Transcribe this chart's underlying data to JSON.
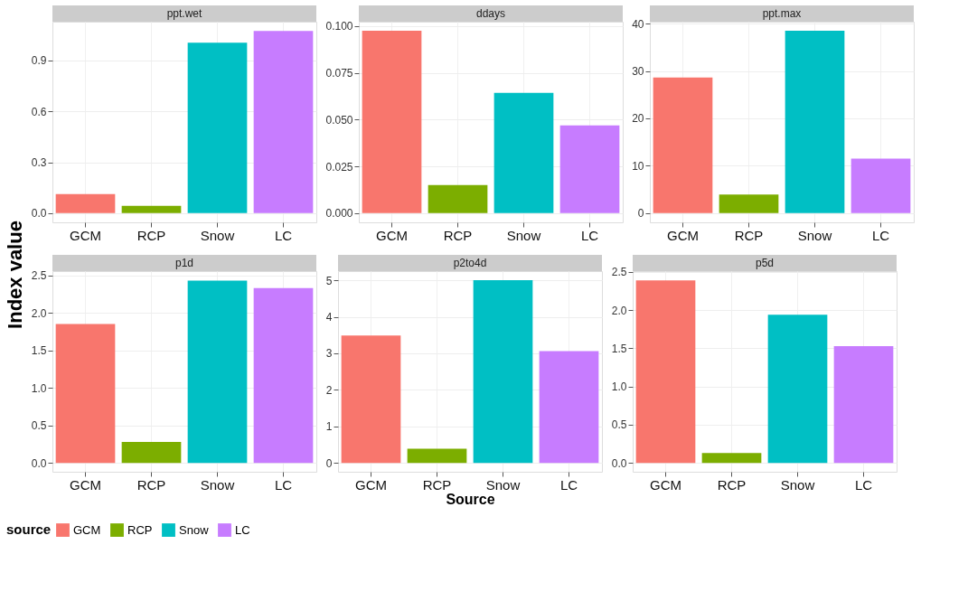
{
  "chart_data": [
    {
      "type": "bar",
      "title": "ppt.wet",
      "ylabel": "Index value",
      "legend_title": "source",
      "legend": "bottom",
      "categories": [
        "GCM",
        "RCP",
        "Snow",
        "LC"
      ],
      "ylim": [
        -0.054,
        1.129
      ],
      "yticks": [
        {
          "value": 0,
          "label": "0.0"
        },
        0.3,
        0.6,
        0.9
      ],
      "grid": true,
      "series": [
        {
          "name": "GCM",
          "color": "#f8766d",
          "values": [
            0.113,
            null,
            null,
            null
          ]
        },
        {
          "name": "RCP",
          "color": "#7cae00",
          "values": [
            null,
            0.043,
            null,
            null
          ]
        },
        {
          "name": "Snow",
          "color": "#00bfc4",
          "values": [
            null,
            null,
            1.005,
            null
          ]
        },
        {
          "name": "LC",
          "color": "#c77cff",
          "values": [
            null,
            null,
            null,
            1.075
          ]
        }
      ]
    },
    {
      "type": "bar",
      "title": "ddays",
      "legend": "bottom",
      "categories": [
        "GCM",
        "RCP",
        "Snow",
        "LC"
      ],
      "ylim": [
        -0.0049,
        0.1023
      ],
      "yticks": [
        {
          "value": 0,
          "label": "0.000"
        },
        {
          "value": 0.025,
          "label": "0.025"
        },
        {
          "value": 0.05,
          "label": "0.050"
        },
        {
          "value": 0.075,
          "label": "0.075"
        },
        {
          "value": 0.1,
          "label": "0.100"
        }
      ],
      "grid": true,
      "series": [
        {
          "name": "GCM",
          "color": "#f8766d",
          "values": [
            0.0975,
            null,
            null,
            null
          ]
        },
        {
          "name": "RCP",
          "color": "#7cae00",
          "values": [
            null,
            0.015,
            null,
            null
          ]
        },
        {
          "name": "Snow",
          "color": "#00bfc4",
          "values": [
            null,
            null,
            0.0643,
            null
          ]
        },
        {
          "name": "LC",
          "color": "#c77cff",
          "values": [
            null,
            null,
            null,
            0.0469
          ]
        }
      ]
    },
    {
      "type": "bar",
      "title": "ppt.max",
      "legend": "bottom",
      "categories": [
        "GCM",
        "RCP",
        "Snow",
        "LC"
      ],
      "ylim": [
        -1.95,
        40.4
      ],
      "yticks": [
        0,
        10,
        20,
        30,
        40
      ],
      "grid": true,
      "series": [
        {
          "name": "GCM",
          "color": "#f8766d",
          "values": [
            28.6,
            null,
            null,
            null
          ]
        },
        {
          "name": "RCP",
          "color": "#7cae00",
          "values": [
            null,
            3.9,
            null,
            null
          ]
        },
        {
          "name": "Snow",
          "color": "#00bfc4",
          "values": [
            null,
            null,
            38.5,
            null
          ]
        },
        {
          "name": "LC",
          "color": "#c77cff",
          "values": [
            null,
            null,
            null,
            11.5
          ]
        }
      ]
    },
    {
      "type": "bar",
      "title": "p1d",
      "legend": "bottom",
      "categories": [
        "GCM",
        "RCP",
        "Snow",
        "LC"
      ],
      "ylim": [
        -0.117,
        2.555
      ],
      "yticks": [
        {
          "value": 0,
          "label": "0.0"
        },
        0.5,
        {
          "value": 1,
          "label": "1.0"
        },
        1.5,
        {
          "value": 2,
          "label": "2.0"
        },
        2.5
      ],
      "grid": true,
      "series": [
        {
          "name": "GCM",
          "color": "#f8766d",
          "values": [
            1.85,
            null,
            null,
            null
          ]
        },
        {
          "name": "RCP",
          "color": "#7cae00",
          "values": [
            null,
            0.28,
            null,
            null
          ]
        },
        {
          "name": "Snow",
          "color": "#00bfc4",
          "values": [
            null,
            null,
            2.43,
            null
          ]
        },
        {
          "name": "LC",
          "color": "#c77cff",
          "values": [
            null,
            null,
            null,
            2.33
          ]
        }
      ]
    },
    {
      "type": "bar",
      "title": "p2to4d",
      "xlabel": "Source",
      "legend": "bottom",
      "categories": [
        "GCM",
        "RCP",
        "Snow",
        "LC"
      ],
      "ylim": [
        -0.24,
        5.25
      ],
      "yticks": [
        0,
        1,
        2,
        3,
        4,
        5
      ],
      "grid": true,
      "series": [
        {
          "name": "GCM",
          "color": "#f8766d",
          "values": [
            3.49,
            null,
            null,
            null
          ]
        },
        {
          "name": "RCP",
          "color": "#7cae00",
          "values": [
            null,
            0.39,
            null,
            null
          ]
        },
        {
          "name": "Snow",
          "color": "#00bfc4",
          "values": [
            null,
            null,
            5.0,
            null
          ]
        },
        {
          "name": "LC",
          "color": "#c77cff",
          "values": [
            null,
            null,
            null,
            3.06
          ]
        }
      ]
    },
    {
      "type": "bar",
      "title": "p5d",
      "legend": "bottom",
      "categories": [
        "GCM",
        "RCP",
        "Snow",
        "LC"
      ],
      "ylim": [
        -0.115,
        2.51
      ],
      "yticks": [
        {
          "value": 0,
          "label": "0.0"
        },
        0.5,
        {
          "value": 1,
          "label": "1.0"
        },
        1.5,
        {
          "value": 2,
          "label": "2.0"
        },
        2.5
      ],
      "grid": true,
      "series": [
        {
          "name": "GCM",
          "color": "#f8766d",
          "values": [
            2.39,
            null,
            null,
            null
          ]
        },
        {
          "name": "RCP",
          "color": "#7cae00",
          "values": [
            null,
            0.13,
            null,
            null
          ]
        },
        {
          "name": "Snow",
          "color": "#00bfc4",
          "values": [
            null,
            null,
            1.94,
            null
          ]
        },
        {
          "name": "LC",
          "color": "#c77cff",
          "values": [
            null,
            null,
            null,
            1.53
          ]
        }
      ]
    }
  ]
}
